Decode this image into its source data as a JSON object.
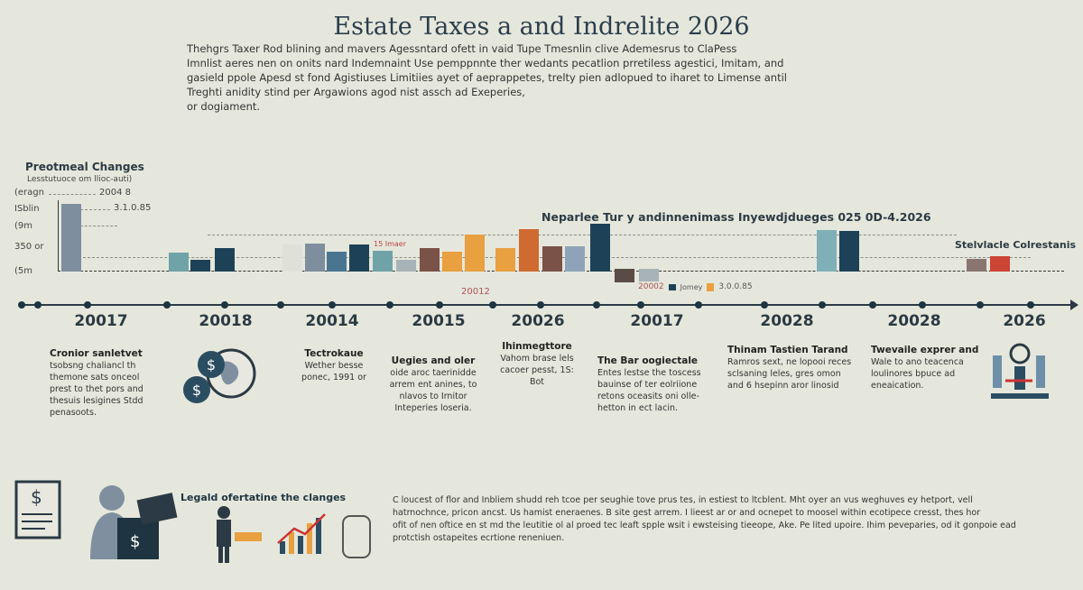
{
  "title": "Estate Taxes a and Indrelite 2026",
  "intro": [
    "Thehgrs Taxer Rod blining and mavers Agessntard ofett in vaid Tupe Tmesnlin clive Ademesrus to ClaPess",
    "Imnlist aeres nen on onits nard Indemnaint  Use pemppnnte ther wedants pecatlion prretiless agestici, Imitam, and",
    "gasield ppole Apesd st fond Agistiuses Limitiies ayet of aeprappetes, trelty pien adlopued to iharet to Limense antil",
    "Treghti anidity stind per Argawions agod nist assch ad Exeperies,",
    "or dogiament."
  ],
  "chart": {
    "heading": "Preotmeal Changes",
    "subheading": "Lesstutuoce om llioc-auti)",
    "y_labels": [
      "(eragn",
      "ISblin",
      "(9m",
      "350 or",
      "(5m"
    ],
    "annotations": {
      "a": "2004 8",
      "b": "3.1.0.85",
      "c": "15 Imaer",
      "d": "20012",
      "e": "20002",
      "f": "Jomey",
      "g": "3.0.0.85"
    },
    "mid_heading": "Neparlee Tur y andinnenimass Inyewdjdueges 025  0D-4.2026",
    "right_heading": "Stelvlacle Colrestanis",
    "bar_colors": [
      "#7e8e9e",
      "#6fa3a8",
      "#1d4257",
      "#1d4257",
      "#dfe0d8",
      "#7e8e9e",
      "#4a7590",
      "#1d4257",
      "#6fa3a8",
      "#a8b3b8",
      "#7a5248",
      "#e8a040",
      "#e8a040",
      "#e8a040",
      "#cf6a30",
      "#7a5248",
      "#8ea3b8",
      "#1d4257",
      "#5a4b45",
      "#a8b3b8",
      "#7fb0b8",
      "#1d4257",
      "#8a7570",
      "#cc4433"
    ]
  },
  "timeline": {
    "years": [
      "20017",
      "20018",
      "20014",
      "20015",
      "20026",
      "20017",
      "20028",
      "20028",
      "2026"
    ]
  },
  "blocks": [
    {
      "title": "Cronior sanletvet",
      "text": "tsobsng chaliancl th themone sats onceol prest to thet pors and thesuis lesigines Stdd penasoots."
    },
    {
      "title": "Tectrokaue",
      "text": "Wether besse ponec, 1991 or"
    },
    {
      "title": "Uegies and oler",
      "text": "oide aroc taerinidde arrem ent anines, to nlavos to Irnitor Inteperies loseria."
    },
    {
      "title": "Ihinmegttore",
      "text": "Vahom brase lels cacoer pesst, 1S: Bot"
    },
    {
      "title": "The Bar oogiectale",
      "text": "Entes lestse the toscess bauinse of ter eolriione retons oceasits oni olle- hetton in ect lacin."
    },
    {
      "title": "Thinam Tastien Tarand",
      "text": "Ramros sext, ne lopooi reces sclsaning leles, gres omon and 6 hsepinn aror linosid"
    },
    {
      "title": "Twevaile exprer and",
      "text": "Wale to ano teacenca loulinores bpuce ad eneaication."
    }
  ],
  "legend": {
    "title": "Legald ofertatine the clanges",
    "text": [
      "C loucest of flor and Inbliem shudd reh tcoe per seughie tove prus tes, in estiest to ltcblent. Mht oyer an vus weghuves ey hetport, vell",
      "hatrnochnce, pricon ancst. Us hamist eneraenes. B site gest arrem. I lieest ar or and ocnepet to moosel within ecotipece cresst, thes hor",
      "ofit of nen oftice en st md the leutitie ol al proed tec leaft spple wsit i ewsteising tieeope, Ake. Pe lited upoire. Ihim peveparies, od it gonpoie ead",
      "protctish ostapeites ecrtione reneniuen."
    ]
  }
}
